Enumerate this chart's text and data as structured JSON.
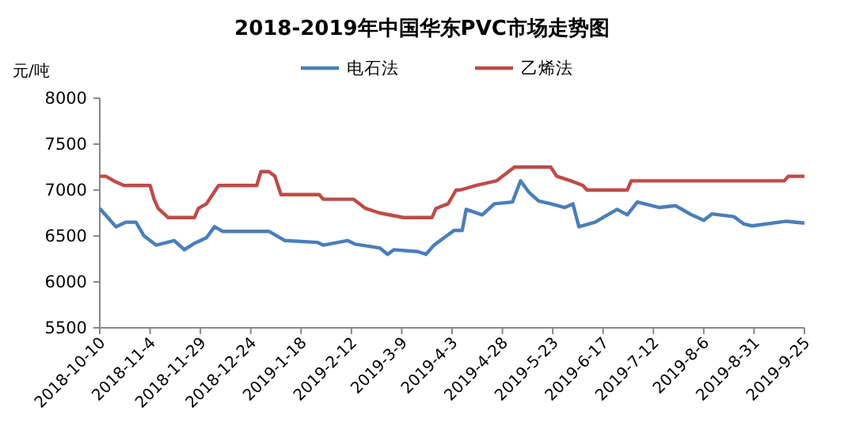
{
  "chart_data": {
    "type": "line",
    "title": "2018-2019年中国华东PVC市场走势图",
    "ylabel": "元/吨",
    "xlim": [
      "2018-10-10",
      "2019-09-25"
    ],
    "xticks": [
      {
        "value": "2018-10-10",
        "label": "2018-10-10"
      },
      {
        "value": "2018-11-04",
        "label": "2018-11-4"
      },
      {
        "value": "2018-11-29",
        "label": "2018-11-29"
      },
      {
        "value": "2018-12-24",
        "label": "2018-12-24"
      },
      {
        "value": "2019-01-18",
        "label": "2019-1-18"
      },
      {
        "value": "2019-02-12",
        "label": "2019-2-12"
      },
      {
        "value": "2019-03-09",
        "label": "2019-3-9"
      },
      {
        "value": "2019-04-03",
        "label": "2019-4-3"
      },
      {
        "value": "2019-04-28",
        "label": "2019-4-28"
      },
      {
        "value": "2019-05-23",
        "label": "2019-5-23"
      },
      {
        "value": "2019-06-17",
        "label": "2019-6-17"
      },
      {
        "value": "2019-07-12",
        "label": "2019-7-12"
      },
      {
        "value": "2019-08-06",
        "label": "2019-8-6"
      },
      {
        "value": "2019-08-31",
        "label": "2019-8-31"
      },
      {
        "value": "2019-09-25",
        "label": "2019-9-25"
      }
    ],
    "ylim": [
      5500,
      8000
    ],
    "yticks": [
      5500,
      6000,
      6500,
      7000,
      7500,
      8000
    ],
    "grid": false,
    "legend": "top",
    "marker": "none",
    "line_style": "solid",
    "series": [
      {
        "name": "电石法",
        "color": "#4a7ebb",
        "x": [
          "2018-10-10",
          "2018-10-14",
          "2018-10-18",
          "2018-10-23",
          "2018-10-28",
          "2018-11-01",
          "2018-11-07",
          "2018-11-16",
          "2018-11-21",
          "2018-11-26",
          "2018-12-02",
          "2018-12-06",
          "2018-12-10",
          "2019-01-02",
          "2019-01-10",
          "2019-01-26",
          "2019-01-29",
          "2019-02-10",
          "2019-02-14",
          "2019-02-26",
          "2019-03-02",
          "2019-03-05",
          "2019-03-17",
          "2019-03-21",
          "2019-03-25",
          "2019-03-30",
          "2019-04-04",
          "2019-04-08",
          "2019-04-10",
          "2019-04-18",
          "2019-04-24",
          "2019-05-03",
          "2019-05-07",
          "2019-05-11",
          "2019-05-16",
          "2019-05-22",
          "2019-05-29",
          "2019-06-02",
          "2019-06-05",
          "2019-06-13",
          "2019-06-24",
          "2019-06-29",
          "2019-07-04",
          "2019-07-15",
          "2019-07-23",
          "2019-07-31",
          "2019-08-06",
          "2019-08-10",
          "2019-08-21",
          "2019-08-26",
          "2019-08-30",
          "2019-09-16",
          "2019-09-25"
        ],
        "values": [
          6800,
          6700,
          6600,
          6650,
          6650,
          6500,
          6400,
          6450,
          6350,
          6420,
          6480,
          6600,
          6550,
          6550,
          6450,
          6430,
          6400,
          6450,
          6410,
          6370,
          6300,
          6350,
          6330,
          6300,
          6400,
          6480,
          6560,
          6560,
          6790,
          6730,
          6850,
          6870,
          7100,
          6980,
          6880,
          6850,
          6810,
          6850,
          6600,
          6650,
          6790,
          6730,
          6870,
          6810,
          6830,
          6730,
          6670,
          6740,
          6710,
          6630,
          6610,
          6660,
          6640
        ]
      },
      {
        "name": "乙烯法",
        "color": "#be4b48",
        "x": [
          "2018-10-10",
          "2018-10-13",
          "2018-10-17",
          "2018-10-22",
          "2018-11-04",
          "2018-11-06",
          "2018-11-08",
          "2018-11-13",
          "2018-11-26",
          "2018-11-28",
          "2018-12-02",
          "2018-12-08",
          "2018-12-27",
          "2018-12-29",
          "2019-01-02",
          "2019-01-05",
          "2019-01-08",
          "2019-01-27",
          "2019-01-29",
          "2019-02-13",
          "2019-02-19",
          "2019-02-26",
          "2019-03-10",
          "2019-03-24",
          "2019-03-26",
          "2019-04-01",
          "2019-04-05",
          "2019-04-07",
          "2019-04-15",
          "2019-04-25",
          "2019-05-04",
          "2019-05-22",
          "2019-05-25",
          "2019-06-01",
          "2019-06-07",
          "2019-06-09",
          "2019-06-29",
          "2019-07-01",
          "2019-08-26",
          "2019-09-15",
          "2019-09-17",
          "2019-09-25"
        ],
        "values": [
          7150,
          7150,
          7100,
          7050,
          7050,
          6900,
          6800,
          6700,
          6700,
          6800,
          6850,
          7050,
          7050,
          7200,
          7200,
          7150,
          6950,
          6950,
          6900,
          6900,
          6800,
          6750,
          6700,
          6700,
          6800,
          6850,
          7000,
          7000,
          7050,
          7100,
          7250,
          7250,
          7150,
          7100,
          7050,
          7000,
          7000,
          7100,
          7100,
          7100,
          7150,
          7150
        ]
      }
    ]
  }
}
